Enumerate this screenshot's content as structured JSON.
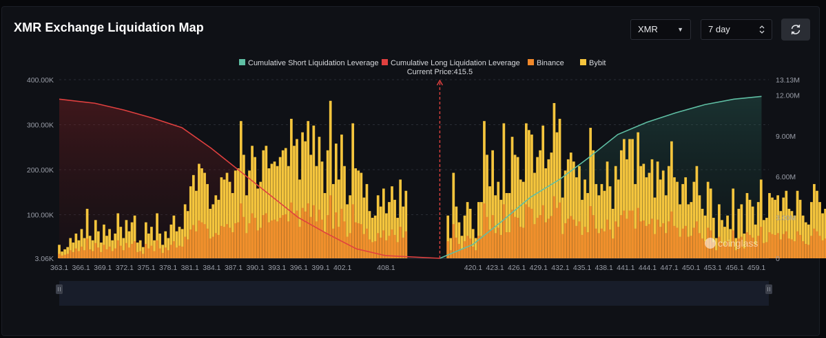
{
  "header": {
    "title": "XMR Exchange Liquidation Map",
    "symbol_select": "XMR",
    "range_select": "7 day",
    "refresh_icon": "refresh-icon"
  },
  "watermark": "coinglass",
  "colors": {
    "short_line": "#5fbfa4",
    "long_line": "#e0403f",
    "binance": "#f0882a",
    "bybit": "#f5c53d",
    "current_price_marker": "#e0403f"
  },
  "chart_data": {
    "type": "bar",
    "title": "",
    "current_price_label": "Current Price:415.5",
    "current_price": 415.5,
    "legend": [
      {
        "name": "Cumulative Short Liquidation Leverage",
        "color": "#5fbfa4",
        "shape": "square"
      },
      {
        "name": "Cumulative Long Liquidation Leverage",
        "color": "#e0403f",
        "shape": "square"
      },
      {
        "name": "Binance",
        "color": "#f0882a",
        "shape": "square"
      },
      {
        "name": "Bybit",
        "color": "#f5c53d",
        "shape": "square"
      }
    ],
    "left_axis": {
      "ticks": [
        "3.06K",
        "100.00K",
        "200.00K",
        "300.00K",
        "400.00K"
      ],
      "range": [
        3060,
        400000
      ]
    },
    "right_axis": {
      "ticks": [
        "0",
        "3.00M",
        "6.00M",
        "9.00M",
        "12.00M",
        "13.13M"
      ],
      "range": [
        0,
        13130000
      ]
    },
    "x_ticks": [
      "363.1",
      "366.1",
      "369.1",
      "372.1",
      "375.1",
      "378.1",
      "381.1",
      "384.1",
      "387.1",
      "390.1",
      "393.1",
      "396.1",
      "399.1",
      "402.1",
      "408.1",
      "420.1",
      "423.1",
      "426.1",
      "429.1",
      "432.1",
      "435.1",
      "438.1",
      "441.1",
      "444.1",
      "447.1",
      "450.1",
      "453.1",
      "456.1",
      "459.1"
    ],
    "x_range": [
      363.1,
      460.8
    ],
    "bars": {
      "bar_width_price": 0.22,
      "price_step": 0.385,
      "bybit": [
        30,
        15,
        20,
        25,
        45,
        35,
        55,
        40,
        65,
        45,
        110,
        50,
        40,
        85,
        60,
        35,
        75,
        50,
        65,
        40,
        55,
        100,
        70,
        45,
        85,
        60,
        80,
        95,
        35,
        40,
        25,
        80,
        55,
        70,
        40,
        100,
        55,
        30,
        60,
        45,
        75,
        95,
        60,
        70,
        65,
        120,
        105,
        160,
        185,
        150,
        210,
        200,
        190,
        165,
        110,
        120,
        140,
        130,
        180,
        175,
        190,
        170,
        145,
        195,
        200,
        305,
        230,
        140,
        195,
        250,
        225,
        155,
        170,
        240,
        250,
        200,
        210,
        215,
        205,
        225,
        240,
        245,
        205,
        310,
        250,
        265,
        175,
        280,
        260,
        305,
        230,
        295,
        205,
        270,
        215,
        145,
        240,
        350,
        165,
        255,
        175,
        275,
        205,
        120,
        140,
        300,
        200,
        195,
        190,
        135,
        165,
        105,
        90,
        95,
        140,
        115,
        155,
        100,
        125,
        160,
        130,
        90,
        175,
        115,
        150,
        150,
        140,
        90,
        120,
        85,
        105,
        105,
        95,
        70,
        55,
        90,
        75,
        45,
        30,
        95,
        45,
        190,
        115,
        80,
        50,
        95,
        125,
        110,
        65,
        45,
        125,
        125,
        305,
        230,
        160,
        240,
        140,
        170,
        130,
        300,
        145,
        145,
        270,
        230,
        225,
        175,
        170,
        300,
        285,
        275,
        190,
        225,
        240,
        295,
        200,
        220,
        235,
        345,
        280,
        310,
        135,
        195,
        220,
        235,
        215,
        180,
        205,
        130,
        175,
        145,
        290,
        240,
        165,
        140,
        165,
        150,
        215,
        160,
        110,
        205,
        175,
        240,
        265,
        220,
        265,
        265,
        165,
        280,
        205,
        210,
        180,
        190,
        220,
        135,
        215,
        175,
        195,
        140,
        205,
        260,
        180,
        170,
        120,
        165,
        180,
        120,
        125,
        170,
        205,
        140,
        110,
        95,
        170,
        155,
        90,
        45,
        120,
        85,
        70,
        95,
        65,
        155,
        45,
        110,
        120,
        55,
        145,
        130,
        115,
        75,
        125,
        175,
        85,
        90,
        145,
        135,
        130,
        140,
        105,
        135,
        150,
        110,
        105,
        95,
        150,
        130,
        95,
        80,
        75,
        125,
        165,
        150,
        125,
        100,
        110,
        90,
        135,
        110,
        145,
        185,
        125,
        70,
        160,
        120,
        120,
        80,
        90,
        55,
        65,
        105,
        120,
        90,
        75,
        75,
        90,
        160,
        135,
        120,
        150,
        120,
        175,
        150,
        140,
        130,
        135,
        210,
        120,
        110,
        130,
        165,
        85,
        145,
        165,
        155,
        120,
        80,
        135,
        200,
        110,
        160,
        175,
        180,
        120,
        130,
        95,
        210,
        230,
        165,
        185,
        120,
        155,
        145,
        145,
        125,
        55,
        135,
        115,
        65,
        130,
        115,
        140,
        150,
        160,
        95,
        80,
        110,
        115,
        140,
        110,
        140,
        130,
        165,
        100,
        95,
        110,
        155,
        135,
        120,
        85,
        80,
        75,
        110,
        100,
        70,
        80,
        65,
        85,
        90,
        100,
        70,
        85,
        70,
        90,
        80,
        70,
        75,
        70,
        55,
        75,
        60,
        80,
        60,
        70,
        70,
        45,
        60,
        50,
        55,
        60,
        60,
        60,
        75,
        45,
        30,
        50,
        45,
        60,
        25,
        75,
        45,
        45,
        55,
        65,
        65,
        60,
        45,
        45,
        70
      ],
      "binance": [
        10,
        6,
        8,
        10,
        18,
        14,
        22,
        16,
        26,
        18,
        44,
        20,
        16,
        34,
        24,
        14,
        30,
        20,
        26,
        16,
        22,
        40,
        28,
        18,
        34,
        24,
        32,
        38,
        14,
        16,
        10,
        32,
        22,
        28,
        16,
        40,
        22,
        12,
        24,
        18,
        30,
        38,
        24,
        28,
        26,
        48,
        42,
        64,
        74,
        60,
        84,
        80,
        76,
        66,
        44,
        48,
        56,
        52,
        72,
        70,
        76,
        68,
        58,
        78,
        80,
        122,
        92,
        56,
        78,
        100,
        90,
        62,
        68,
        96,
        100,
        80,
        84,
        86,
        82,
        90,
        96,
        98,
        82,
        124,
        100,
        106,
        70,
        112,
        104,
        122,
        92,
        118,
        82,
        108,
        86,
        58,
        96,
        140,
        66,
        102,
        70,
        110,
        82,
        48,
        56,
        120,
        80,
        78,
        76,
        54,
        66,
        42,
        36,
        38,
        56,
        46,
        62,
        40,
        50,
        64,
        52,
        36,
        70,
        46,
        60,
        60,
        56,
        36,
        48,
        34,
        42,
        42,
        38,
        28,
        22,
        36,
        30,
        18,
        12,
        38,
        18,
        76,
        46,
        32,
        20,
        38,
        50,
        44,
        26,
        18,
        50,
        50,
        122,
        92,
        64,
        96,
        56,
        68,
        52,
        120,
        58,
        58,
        108,
        92,
        90,
        70,
        68,
        120,
        114,
        110,
        76,
        90,
        96,
        118,
        80,
        88,
        94,
        138,
        112,
        124,
        54,
        78,
        88,
        94,
        86,
        72,
        82,
        52,
        70,
        58,
        116,
        96,
        66,
        56,
        66,
        60,
        86,
        64,
        44,
        82,
        70,
        96,
        106,
        88,
        106,
        106,
        66,
        112,
        82,
        84,
        72,
        76,
        88,
        54,
        86,
        70,
        78,
        56,
        82,
        104,
        72,
        68,
        48,
        66,
        72,
        48,
        50,
        68,
        82,
        56,
        44,
        38,
        68,
        62,
        36,
        18,
        48,
        34,
        28,
        38,
        26,
        62,
        18,
        44,
        48,
        22,
        58,
        52,
        46,
        30,
        50,
        70,
        34,
        36,
        58,
        54,
        52,
        56,
        42,
        54,
        60,
        44,
        42,
        38,
        60,
        52,
        38,
        32,
        30,
        50,
        66,
        60,
        50,
        40,
        44,
        36,
        54,
        44,
        58,
        74,
        50,
        28,
        64,
        48,
        48,
        32,
        36,
        22,
        26,
        42,
        48,
        36,
        30,
        30,
        36,
        64,
        54,
        48,
        60,
        48,
        70,
        60,
        56,
        52,
        54,
        84,
        48,
        44,
        52,
        66,
        34,
        58,
        66,
        62,
        48,
        32,
        54,
        80,
        44,
        64,
        70,
        72,
        48,
        52,
        38,
        84,
        92,
        66,
        74,
        48,
        62,
        58,
        58,
        50,
        22,
        54,
        46,
        26,
        52,
        46,
        56,
        60,
        64,
        38,
        32,
        44,
        46,
        56,
        44,
        56,
        52,
        66,
        40,
        38,
        44,
        62,
        54,
        48,
        34,
        32,
        30,
        44,
        40,
        28,
        32,
        26,
        34,
        36,
        40,
        28,
        34,
        28,
        36,
        32,
        28,
        30,
        28,
        22,
        30,
        24,
        32,
        24,
        28,
        28,
        18,
        24,
        20,
        22,
        24,
        24,
        24,
        30,
        18,
        12,
        20,
        18,
        24,
        10,
        30,
        18,
        18,
        22,
        26,
        26,
        24,
        18,
        18,
        28
      ]
    },
    "long_cumulative_m": [
      [
        363.1,
        11.7
      ],
      [
        368,
        11.4
      ],
      [
        372,
        10.9
      ],
      [
        376,
        10.3
      ],
      [
        380,
        9.6
      ],
      [
        384,
        8.1
      ],
      [
        388,
        6.4
      ],
      [
        392,
        4.7
      ],
      [
        396,
        3.0
      ],
      [
        400,
        1.8
      ],
      [
        404,
        0.7
      ],
      [
        408,
        0.2
      ],
      [
        415.5,
        0
      ]
    ],
    "short_cumulative_m": [
      [
        415.5,
        0
      ],
      [
        420,
        1.0
      ],
      [
        424,
        2.7
      ],
      [
        428,
        4.5
      ],
      [
        432,
        5.8
      ],
      [
        436,
        7.4
      ],
      [
        440,
        9.1
      ],
      [
        444,
        10.0
      ],
      [
        448,
        10.7
      ],
      [
        452,
        11.3
      ],
      [
        456,
        11.7
      ],
      [
        459.8,
        11.9
      ]
    ]
  }
}
